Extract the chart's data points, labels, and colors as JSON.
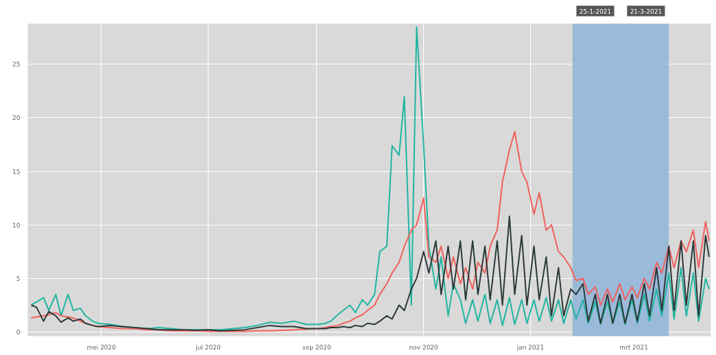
{
  "chart_data": {
    "type": "line",
    "x": [
      "2020-03-22",
      "2020-03-25",
      "2020-03-29",
      "2020-04-01",
      "2020-04-05",
      "2020-04-08",
      "2020-04-12",
      "2020-04-15",
      "2020-04-19",
      "2020-04-22",
      "2020-04-26",
      "2020-04-29",
      "2020-05-06",
      "2020-05-13",
      "2020-05-20",
      "2020-05-27",
      "2020-06-03",
      "2020-06-10",
      "2020-06-17",
      "2020-06-24",
      "2020-07-01",
      "2020-07-08",
      "2020-07-15",
      "2020-07-22",
      "2020-07-29",
      "2020-08-05",
      "2020-08-12",
      "2020-08-19",
      "2020-08-26",
      "2020-09-02",
      "2020-09-06",
      "2020-09-09",
      "2020-09-13",
      "2020-09-16",
      "2020-09-20",
      "2020-09-23",
      "2020-09-27",
      "2020-09-30",
      "2020-10-04",
      "2020-10-07",
      "2020-10-11",
      "2020-10-14",
      "2020-10-18",
      "2020-10-21",
      "2020-10-25",
      "2020-10-28",
      "2020-11-01",
      "2020-11-04",
      "2020-11-08",
      "2020-11-11",
      "2020-11-15",
      "2020-11-18",
      "2020-11-22",
      "2020-11-25",
      "2020-11-29",
      "2020-12-02",
      "2020-12-06",
      "2020-12-09",
      "2020-12-13",
      "2020-12-16",
      "2020-12-20",
      "2020-12-23",
      "2020-12-27",
      "2020-12-30",
      "2021-01-03",
      "2021-01-06",
      "2021-01-10",
      "2021-01-13",
      "2021-01-17",
      "2021-01-20",
      "2021-01-24",
      "2021-01-27",
      "2021-01-31",
      "2021-02-03",
      "2021-02-07",
      "2021-02-10",
      "2021-02-14",
      "2021-02-17",
      "2021-02-21",
      "2021-02-24",
      "2021-02-28",
      "2021-03-03",
      "2021-03-07",
      "2021-03-10",
      "2021-03-14",
      "2021-03-17",
      "2021-03-21",
      "2021-03-24",
      "2021-03-28",
      "2021-03-31",
      "2021-04-04",
      "2021-04-07",
      "2021-04-11",
      "2021-04-13"
    ],
    "series": [
      {
        "color": "#20b5a0",
        "values": [
          2.5,
          2.8,
          3.2,
          2.0,
          3.5,
          1.5,
          3.5,
          2.0,
          2.2,
          1.5,
          1.0,
          0.8,
          0.7,
          0.5,
          0.4,
          0.3,
          0.4,
          0.3,
          0.2,
          0.2,
          0.2,
          0.2,
          0.3,
          0.4,
          0.6,
          0.9,
          0.8,
          1.0,
          0.7,
          0.7,
          0.8,
          1.0,
          1.6,
          2.0,
          2.5,
          1.8,
          3.0,
          2.5,
          3.5,
          7.5,
          8.0,
          17.4,
          16.5,
          22.0,
          2.5,
          28.5,
          17.5,
          8.0,
          4.0,
          7.0,
          1.5,
          4.5,
          3.0,
          0.8,
          3.0,
          1.0,
          3.5,
          0.8,
          3.0,
          0.6,
          3.2,
          0.7,
          3.0,
          0.8,
          3.0,
          1.0,
          3.2,
          1.0,
          3.0,
          0.8,
          3.0,
          1.2,
          3.0,
          0.8,
          2.8,
          0.7,
          2.8,
          0.8,
          2.8,
          0.7,
          3.0,
          0.8,
          3.5,
          1.0,
          4.0,
          1.5,
          5.5,
          1.2,
          6.0,
          1.5,
          5.5,
          1.0,
          5.0,
          4.0
        ]
      },
      {
        "color": "#f0605a",
        "values": [
          1.3,
          1.4,
          1.5,
          1.6,
          1.8,
          1.5,
          1.4,
          1.3,
          1.0,
          0.8,
          0.6,
          0.5,
          0.4,
          0.3,
          0.3,
          0.2,
          0.2,
          0.1,
          0.1,
          0.1,
          0.05,
          0.05,
          0.05,
          0.05,
          0.1,
          0.1,
          0.15,
          0.2,
          0.25,
          0.3,
          0.4,
          0.5,
          0.6,
          0.8,
          1.0,
          1.3,
          1.6,
          2.0,
          2.5,
          3.5,
          4.5,
          5.5,
          6.5,
          8.0,
          9.5,
          10.0,
          12.5,
          7.0,
          6.5,
          8.0,
          5.0,
          7.0,
          4.5,
          6.0,
          4.0,
          6.5,
          5.5,
          8.0,
          9.5,
          14.0,
          17.0,
          18.7,
          15.0,
          14.0,
          11.0,
          13.0,
          9.5,
          10.0,
          7.5,
          7.0,
          6.0,
          4.8,
          5.0,
          3.5,
          4.2,
          2.5,
          4.0,
          2.8,
          4.5,
          3.0,
          4.2,
          3.2,
          5.0,
          4.0,
          6.5,
          5.5,
          8.0,
          6.0,
          8.5,
          7.5,
          9.5,
          6.0,
          10.3,
          8.5
        ]
      },
      {
        "color": "#2b3838",
        "values": [
          2.5,
          2.3,
          1.0,
          1.9,
          1.5,
          0.9,
          1.3,
          1.0,
          1.2,
          0.8,
          0.6,
          0.5,
          0.6,
          0.5,
          0.4,
          0.3,
          0.2,
          0.2,
          0.2,
          0.15,
          0.2,
          0.1,
          0.15,
          0.2,
          0.4,
          0.6,
          0.5,
          0.5,
          0.3,
          0.3,
          0.3,
          0.4,
          0.4,
          0.5,
          0.4,
          0.6,
          0.5,
          0.8,
          0.7,
          1.0,
          1.5,
          1.2,
          2.5,
          2.0,
          4.0,
          5.0,
          7.5,
          5.5,
          8.5,
          3.5,
          8.0,
          4.0,
          8.5,
          3.0,
          8.5,
          3.5,
          8.0,
          3.0,
          8.5,
          2.5,
          10.8,
          3.5,
          9.0,
          2.5,
          8.0,
          3.0,
          7.0,
          1.5,
          6.0,
          1.5,
          4.0,
          3.5,
          4.5,
          1.0,
          3.5,
          0.8,
          3.5,
          0.8,
          3.5,
          0.8,
          3.5,
          1.0,
          4.5,
          1.5,
          6.0,
          2.0,
          8.0,
          2.0,
          8.5,
          2.5,
          8.5,
          1.5,
          9.0,
          7.0
        ]
      }
    ],
    "xlim": [
      "2020-03-20",
      "2021-04-14"
    ],
    "ylim": [
      -0.4,
      28.8
    ],
    "xticks": [
      {
        "value": "2020-05-01",
        "label": "mei 2020"
      },
      {
        "value": "2020-07-01",
        "label": "jul 2020"
      },
      {
        "value": "2020-09-01",
        "label": "sep 2020"
      },
      {
        "value": "2020-11-01",
        "label": "nov 2020"
      },
      {
        "value": "2021-01-01",
        "label": "jan 2021"
      },
      {
        "value": "2021-03-01",
        "label": "mrt 2021"
      }
    ],
    "yticks": [
      0,
      5,
      10,
      15,
      20,
      25
    ],
    "grid": true,
    "bands": [
      {
        "axis": "x",
        "from": "2021-01-25",
        "to": "2021-03-21",
        "color": "#8fb4d9"
      }
    ],
    "annotations": [
      "25-1-2021",
      "21-3-2021"
    ]
  }
}
